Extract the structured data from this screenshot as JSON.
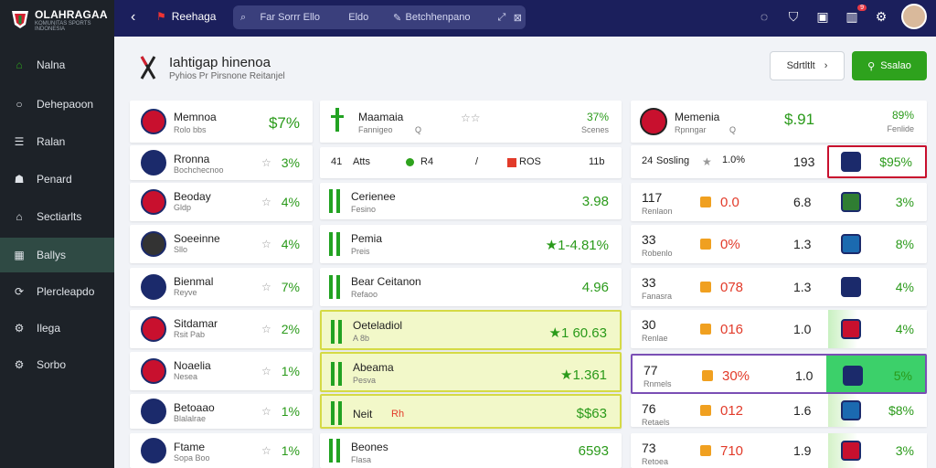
{
  "brand": {
    "name": "OLAHRAGAA",
    "tagline": "KOMUNITAS SPORTS INDONESIA"
  },
  "sidebar": {
    "items": [
      {
        "label": "Nalna",
        "icon": "home-icon"
      },
      {
        "label": "Dehepaoon",
        "icon": "circle-icon"
      },
      {
        "label": "Ralan",
        "icon": "list-icon"
      },
      {
        "label": "Penard",
        "icon": "people-icon"
      },
      {
        "label": "Sectiarlts",
        "icon": "home-outline-icon"
      },
      {
        "label": "Ballys",
        "icon": "table-icon"
      },
      {
        "label": "Plercleapdo",
        "icon": "trophy-icon"
      },
      {
        "label": "Ilega",
        "icon": "gear-icon"
      },
      {
        "label": "Sorbo",
        "icon": "settings-icon"
      }
    ],
    "active_index": 5
  },
  "topbar": {
    "back": "‹",
    "flag_label": "Reehaga",
    "search_placeholder": "Far Sorrr Ello",
    "search_value": "Eldo",
    "filter_label": "Betchhenpano",
    "notif_count": "9"
  },
  "header": {
    "title": "Iahtigap hinenoa",
    "subtitle": "Pyhios Pr Pirsnone Reitanjel",
    "btn_secondary": "Sdrtltlt",
    "btn_primary": "Ssalao"
  },
  "col1": [
    {
      "name": "Memnoa",
      "sub": "Rolo bbs",
      "val": "$7%"
    },
    {
      "name": "Rronna",
      "sub": "Bochchecnoo",
      "val": "3%"
    },
    {
      "name": "Beoday",
      "sub": "Gldp",
      "val": "4%"
    },
    {
      "name": "Soeeinne",
      "sub": "Sllo",
      "val": "4%"
    },
    {
      "name": "Bienmal",
      "sub": "Reyve",
      "val": "7%"
    },
    {
      "name": "Sitdamar",
      "sub": "Rsit Pab",
      "val": "2%"
    },
    {
      "name": "Noaelia",
      "sub": "Nesea",
      "val": "1%"
    },
    {
      "name": "Betoaao",
      "sub": "Blalalrae",
      "val": "1%"
    },
    {
      "name": "Ftame",
      "sub": "Sopa Boo",
      "val": "1%"
    }
  ],
  "col2": {
    "header": {
      "name": "Maamaia",
      "sub": "Fannigeo",
      "sub2": "Q",
      "val": "37%",
      "val_sub": "Scenes"
    },
    "stats_row": {
      "a": "41",
      "b": "Atts",
      "c": "R4",
      "d": "/",
      "e": "ROS",
      "f": "11b"
    },
    "rows": [
      {
        "name": "Cerienee",
        "sub": "Fesino",
        "val": "3.98"
      },
      {
        "name": "Pemia",
        "sub": "Preis",
        "val": "★1-4.81%"
      },
      {
        "name": "Bear Ceitanon",
        "sub": "Refaoo",
        "val": "4.96"
      },
      {
        "name": "Oeteladiol",
        "sub": "A 8b",
        "val": "★1 60.63"
      },
      {
        "name": "Abeama",
        "sub": "Pesva",
        "val": "★1.361"
      },
      {
        "name": "Neit",
        "sub": "",
        "val": "$$63",
        "extra": "Rh"
      },
      {
        "name": "Beones",
        "sub": "Flasa",
        "val": "6593"
      }
    ]
  },
  "col3": {
    "header": {
      "name": "Memenia",
      "sub": "Rpnngar",
      "sub2": "Q",
      "val": "$.91",
      "val2": "89%",
      "val2_sub": "Fenlide"
    },
    "rows": [
      {
        "a": "24",
        "b": "Sosling",
        "star": "★",
        "c": "1.0%",
        "d": "193",
        "e": "$95%"
      },
      {
        "a": "117",
        "sub": "Renlaon",
        "c": "0.0",
        "d": "6.8",
        "e": "3%"
      },
      {
        "a": "33",
        "sub": "Robenlo",
        "c": "0%",
        "d": "1.3",
        "e": "8%"
      },
      {
        "a": "33",
        "sub": "Fanasra",
        "c": "078",
        "d": "1.3",
        "e": "4%"
      },
      {
        "a": "30",
        "sub": "Renlae",
        "c": "016",
        "d": "1.0",
        "e": "4%"
      },
      {
        "a": "77",
        "sub": "Rnmels",
        "c": "30%",
        "d": "1.0",
        "e": "5%"
      },
      {
        "a": "76",
        "sub": "Retaels",
        "c": "012",
        "d": "1.6",
        "e": "$8%"
      },
      {
        "a": "73",
        "sub": "Retoea",
        "c": "710",
        "d": "1.9",
        "e": "3%"
      }
    ]
  },
  "colors": {
    "accent": "#2ea21d",
    "topbar": "#1b1f5c",
    "sidebar": "#1d2228",
    "highlight": "#f2f8c9",
    "alert": "#e23b2a"
  }
}
